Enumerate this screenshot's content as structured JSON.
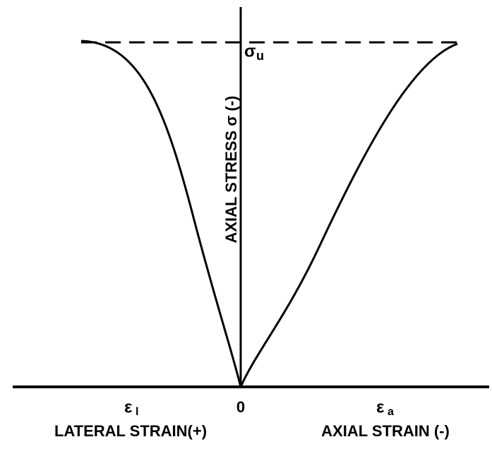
{
  "y_axis_label": "AXIAL STRESS σ (-)",
  "ultimate_stress": {
    "symbol": "σ",
    "subscript": "u"
  },
  "origin_label": "0",
  "lateral_strain_symbol": {
    "symbol": "ε",
    "subscript": "l"
  },
  "axial_strain_symbol": {
    "symbol": "ε",
    "subscript": "a"
  },
  "x_axis_left_label": "LATERAL STRAIN(+)",
  "x_axis_right_label": "AXIAL STRAIN (-)"
}
